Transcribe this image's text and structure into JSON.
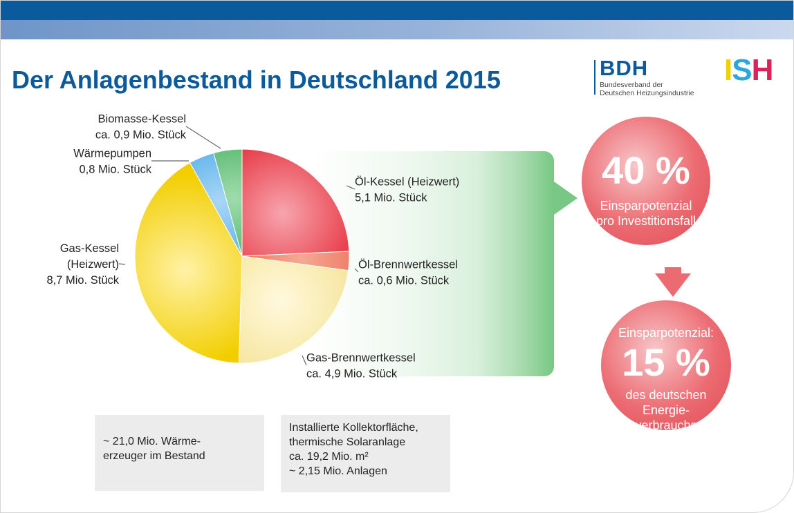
{
  "title": "Der Anlagenbestand in Deutschland 2015",
  "logos": {
    "bdh": {
      "name": "BDH",
      "subtitle_line1": "Bundesverband der",
      "subtitle_line2": "Deutschen Heizungsindustrie"
    },
    "ish": {
      "i": "I",
      "s": "S",
      "h": "H"
    }
  },
  "colors": {
    "brand_blue": "#0b5a9c",
    "green": "#78c784",
    "savings_red": "#ec6b72"
  },
  "chart_data": {
    "type": "pie",
    "unit": "Mio. Stück",
    "start_angle_deg": 0,
    "direction": "clockwise",
    "slices": [
      {
        "name": "Öl-Kessel (Heizwert)",
        "value": 5.1,
        "color": "#e31f2b",
        "highlight": "#f7a5ae",
        "label_lines": [
          "Öl-Kessel (Heizwert)",
          "5,1 Mio. Stück"
        ],
        "label_anchor": "start"
      },
      {
        "name": "Öl-Brennwertkessel",
        "value": 0.6,
        "color": "#e85a45",
        "highlight": "#f5a993",
        "label_lines": [
          "Öl-Brennwertkessel",
          "ca. 0,6 Mio. Stück"
        ],
        "label_anchor": "start"
      },
      {
        "name": "Gas-Brennwertkessel",
        "value": 4.9,
        "color": "#f3e08c",
        "highlight": "#fff9dd",
        "label_lines": [
          "Gas-Brennwertkessel",
          "ca. 4,9 Mio. Stück"
        ],
        "label_anchor": "start"
      },
      {
        "name": "Gas-Kessel (Heizwert)",
        "value": 8.7,
        "color": "#f2ce00",
        "highlight": "#fff2a6",
        "label_lines": [
          "Gas-Kessel",
          "(Heizwert)",
          "8,7 Mio. Stück"
        ],
        "label_anchor": "end"
      },
      {
        "name": "Wärmepumpen",
        "value": 0.8,
        "color": "#2e9ae6",
        "highlight": "#a9d7f6",
        "label_lines": [
          "Wärmepumpen",
          "0,8 Mio. Stück"
        ],
        "label_anchor": "end"
      },
      {
        "name": "Biomasse-Kessel",
        "value": 0.9,
        "color": "#2ea34a",
        "highlight": "#9fdcad",
        "label_lines": [
          "Biomasse-Kessel",
          "ca. 0,9 Mio. Stück"
        ],
        "label_anchor": "end"
      }
    ]
  },
  "savings": {
    "top": {
      "percent": "40 %",
      "line1": "Einsparpotenzial",
      "line2": "pro Investitionsfall"
    },
    "bottom": {
      "label": "Einsparpotenzial:",
      "percent": "15 %",
      "line1": "des deutschen",
      "line2": "Energie-",
      "line3": "verbrauchs"
    }
  },
  "info": {
    "left": {
      "line1": "~ 21,0 Mio. Wärme-",
      "line2": "erzeuger im Bestand"
    },
    "right": {
      "line1": "Installierte Kollektorfläche,",
      "line2": "thermische Solaranlage",
      "line3": "ca. 19,2 Mio. m²",
      "line4": "~ 2,15 Mio. Anlagen"
    }
  }
}
